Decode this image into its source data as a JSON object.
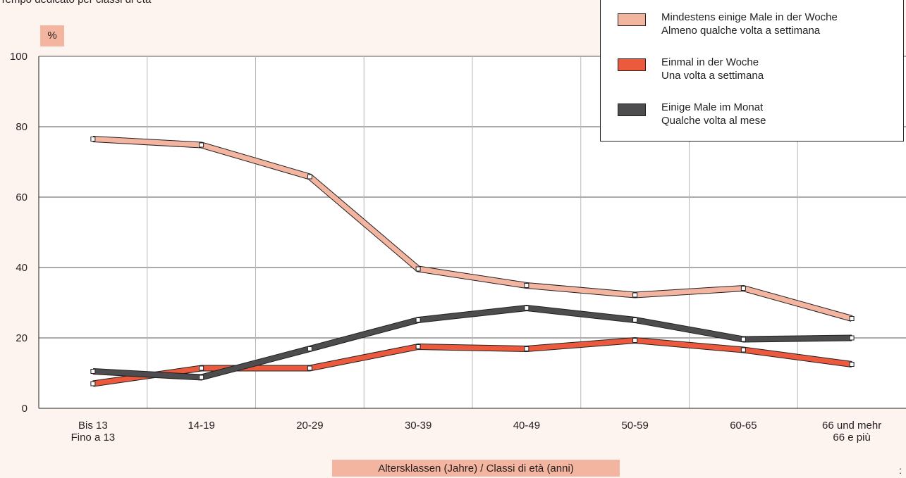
{
  "header": {
    "cut_text": "Tempo dedicato per classi di età"
  },
  "corner_mark": ":",
  "chart_data": {
    "type": "line",
    "ylabel": "%",
    "xlabel": "Altersklassen (Jahre) / Classi di età (anni)",
    "ylim": [
      0,
      100
    ],
    "yticks": [
      0,
      20,
      40,
      60,
      80,
      100
    ],
    "grid": true,
    "legend_position": "top-right",
    "categories": [
      [
        "Bis 13",
        "Fino a 13"
      ],
      [
        "14-19"
      ],
      [
        "20-29"
      ],
      [
        "30-39"
      ],
      [
        "40-49"
      ],
      [
        "50-59"
      ],
      [
        "60-65"
      ],
      [
        "66 und mehr",
        "66 e più"
      ]
    ],
    "series": [
      {
        "name": [
          "Mindestens einige Male in der Woche",
          "Almeno qualche volta a settimana"
        ],
        "color": "#f4b5a0",
        "values": [
          76.5,
          74.8,
          65.8,
          39.6,
          34.9,
          32.2,
          34.1,
          25.5
        ]
      },
      {
        "name": [
          "Einmal in der Woche",
          "Una volta a settimana"
        ],
        "color": "#ec5a3e",
        "values": [
          7.0,
          11.4,
          11.4,
          17.5,
          16.9,
          19.3,
          16.6,
          12.5
        ]
      },
      {
        "name": [
          "Einige Male im Monat",
          "Qualche volta al mese"
        ],
        "color": "#4d4d4f",
        "values": [
          10.5,
          8.8,
          16.9,
          25.1,
          28.5,
          25.1,
          19.6,
          20.0
        ]
      }
    ]
  }
}
